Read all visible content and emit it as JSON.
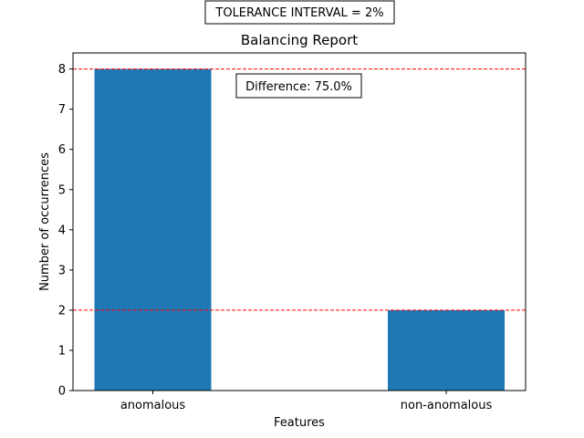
{
  "chart_data": {
    "type": "bar",
    "title": "Balancing Report",
    "suptitle": "TOLERANCE INTERVAL = 2%",
    "annotation": "Difference: 75.0%",
    "xlabel": "Features",
    "ylabel": "Number of occurrences",
    "categories": [
      "anomalous",
      "non-anomalous"
    ],
    "values": [
      8,
      2
    ],
    "ylim": [
      0,
      8
    ],
    "yticks": [
      0,
      1,
      2,
      3,
      4,
      5,
      6,
      7,
      8
    ],
    "reference_lines": [
      8,
      2
    ],
    "bar_color": "#1f77b4",
    "reference_line_color": "#ff0000",
    "grid": false
  }
}
